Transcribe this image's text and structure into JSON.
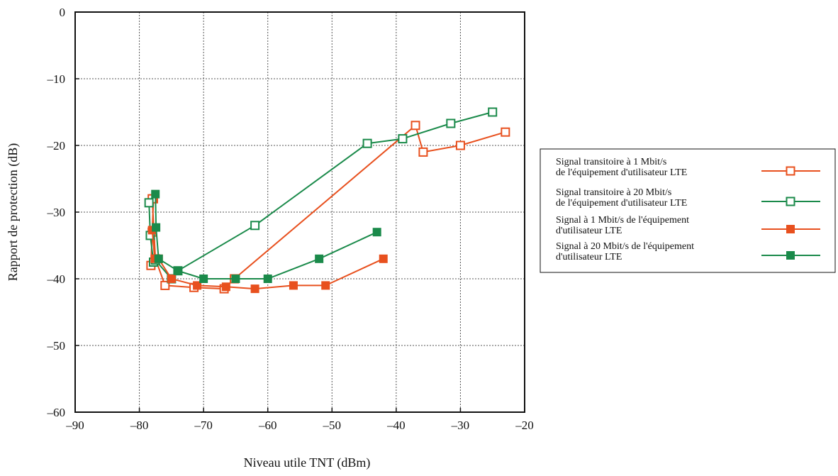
{
  "chart_data": {
    "type": "line",
    "title": "",
    "xlabel": "Niveau utile TNT (dBm)",
    "ylabel": "Rapport de protection (dB)",
    "xlim": [
      -90,
      -20
    ],
    "ylim": [
      -60,
      0
    ],
    "xticks": [
      -90,
      -80,
      -70,
      -60,
      -50,
      -40,
      -30,
      -20
    ],
    "yticks": [
      0,
      -10,
      -20,
      -30,
      -40,
      -50,
      -60
    ],
    "xtick_labels": [
      "–90",
      "–80",
      "–70",
      "–60",
      "–50",
      "–40",
      "–30",
      "–20"
    ],
    "ytick_labels": [
      "0",
      "–10",
      "–20",
      "–30",
      "–40",
      "–50",
      "–60"
    ],
    "grid": true,
    "legend_position": "right",
    "series": [
      {
        "name": "Signal transitoire à 1 Mbit/s de l'équipement d'utilisateur LTE",
        "legend_lines": [
          "Signal transitoire à 1 Mbit/s",
          "de l'équipement d'utilisateur LTE"
        ],
        "color": "#e8501e",
        "marker": "hollow-square",
        "x": [
          -78.2,
          -78,
          -77.8,
          -78,
          -77.5,
          -76,
          -71.5,
          -66.8,
          -65.2,
          -37,
          -35.8,
          -30,
          -23
        ],
        "y": [
          -38,
          -33,
          -28,
          -28,
          -37,
          -41,
          -41.3,
          -41.5,
          -40,
          -17,
          -21,
          -20,
          -18
        ]
      },
      {
        "name": "Signal transitoire à 20 Mbit/s de l'équipement d'utilisateur LTE",
        "legend_lines": [
          "Signal transitoire à 20 Mbit/s",
          "de l'équipement d'utilisateur LTE"
        ],
        "color": "#1a8a4a",
        "marker": "hollow-square",
        "x": [
          -78.5,
          -78.3,
          -77.8,
          -77.5,
          -75,
          -74,
          -62,
          -44.5,
          -39,
          -31.5,
          -25
        ],
        "y": [
          -28.6,
          -33.5,
          -37.5,
          -37.2,
          -40,
          -38.8,
          -32,
          -19.7,
          -19,
          -16.7,
          -15
        ]
      },
      {
        "name": "Signal à 1 Mbit/s de l'équipement d'utilisateur LTE",
        "legend_lines": [
          "Signal à 1 Mbit/s de l'équipement",
          "d'utilisateur LTE"
        ],
        "color": "#e8501e",
        "marker": "filled-square",
        "x": [
          -78,
          -77.6,
          -77,
          -75,
          -71,
          -66.5,
          -62,
          -56,
          -51,
          -42
        ],
        "y": [
          -32.7,
          -37,
          -37,
          -40,
          -41,
          -41.2,
          -41.5,
          -41,
          -41,
          -37
        ]
      },
      {
        "name": "Signal à 20 Mbit/s de l'équipement d'utilisateur LTE",
        "legend_lines": [
          "Signal à 20 Mbit/s de l'équipement",
          "d'utilisateur LTE"
        ],
        "color": "#1a8a4a",
        "marker": "filled-square",
        "x": [
          -77.5,
          -77.4,
          -77,
          -74,
          -70,
          -65,
          -60,
          -52,
          -43
        ],
        "y": [
          -27.3,
          -32.3,
          -37,
          -38.8,
          -40,
          -40,
          -40,
          -37,
          -33
        ]
      }
    ]
  }
}
